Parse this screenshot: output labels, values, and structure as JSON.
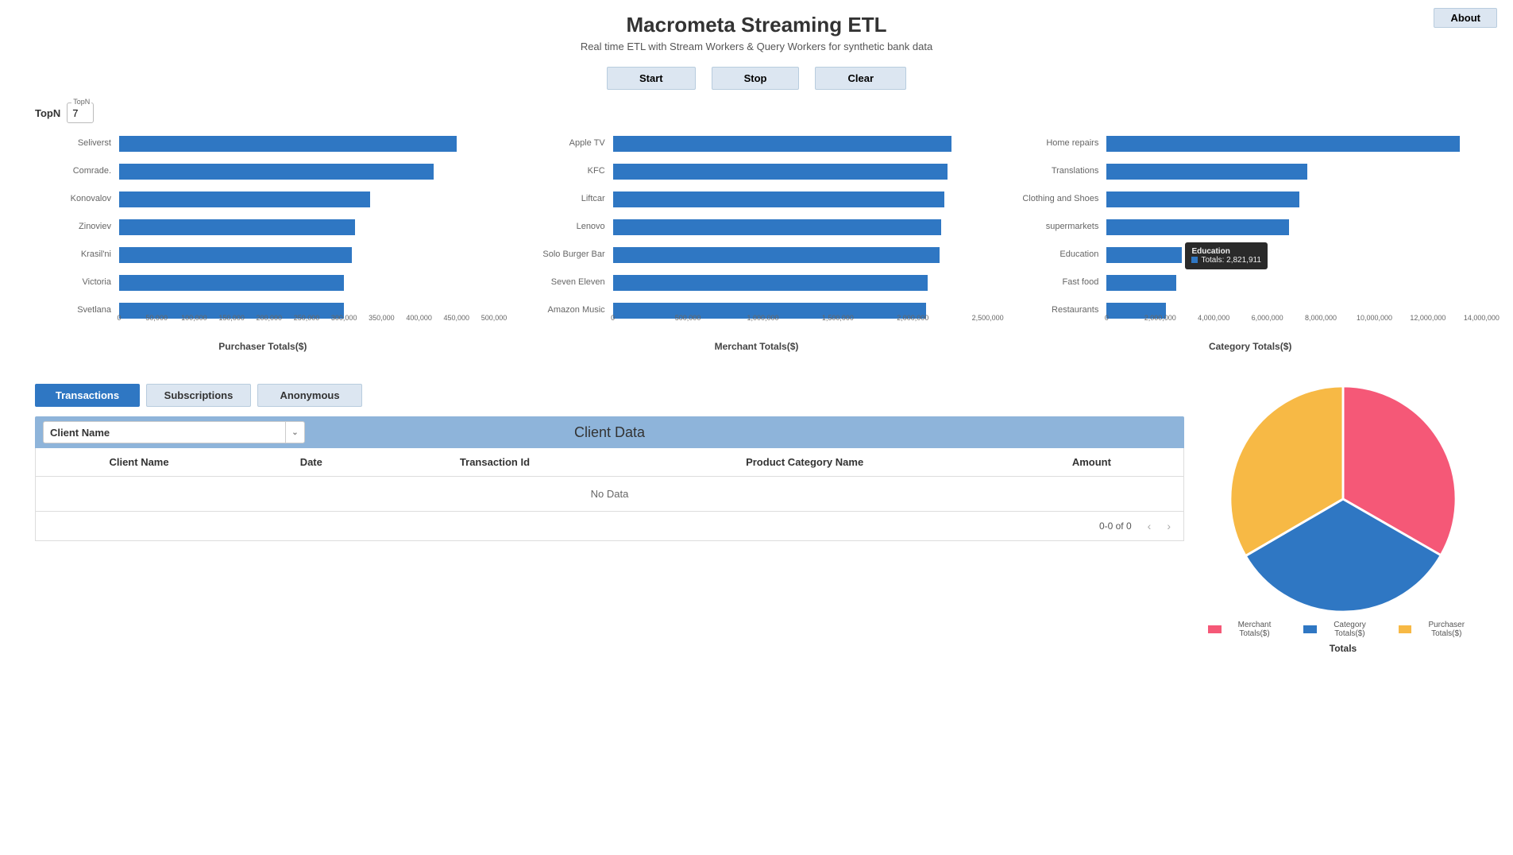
{
  "header": {
    "title": "Macrometa Streaming ETL",
    "subtitle": "Real time ETL with Stream Workers & Query Workers for synthetic bank data",
    "about_label": "About"
  },
  "controls": {
    "start": "Start",
    "stop": "Stop",
    "clear": "Clear"
  },
  "topn": {
    "label": "TopN",
    "mini_label": "TopN",
    "value": "7"
  },
  "bar_charts": {
    "bar_color": "#2f77c3",
    "label_color": "#666666",
    "label_fontsize": 11,
    "tick_fontsize": 9,
    "title_fontsize": 12,
    "purchaser": {
      "title": "Purchaser Totals($)",
      "x_max": 500000,
      "x_ticks": [
        0,
        50000,
        100000,
        150000,
        200000,
        250000,
        300000,
        350000,
        400000,
        450000,
        500000
      ],
      "x_tick_labels": [
        "0",
        "50,000",
        "100,000",
        "150,000",
        "200,000",
        "250,000",
        "300,000",
        "350,000",
        "400,000",
        "450,000",
        "500,000"
      ],
      "bars": [
        {
          "label": "Seliverst",
          "value": 450000
        },
        {
          "label": "Comrade.",
          "value": 420000
        },
        {
          "label": "Konovalov",
          "value": 335000
        },
        {
          "label": "Zinoviev",
          "value": 315000
        },
        {
          "label": "Krasil'ni",
          "value": 310000
        },
        {
          "label": "Victoria",
          "value": 300000
        },
        {
          "label": "Svetlana",
          "value": 300000
        }
      ]
    },
    "merchant": {
      "title": "Merchant Totals($)",
      "x_max": 2500000,
      "x_ticks": [
        0,
        500000,
        1000000,
        1500000,
        2000000,
        2500000
      ],
      "x_tick_labels": [
        "0",
        "500,000",
        "1,000,000",
        "1,500,000",
        "2,000,000",
        "2,500,000"
      ],
      "bars": [
        {
          "label": "Apple TV",
          "value": 2260000
        },
        {
          "label": "KFC",
          "value": 2230000
        },
        {
          "label": "Liftcar",
          "value": 2210000
        },
        {
          "label": "Lenovo",
          "value": 2190000
        },
        {
          "label": "Solo Burger Bar",
          "value": 2180000
        },
        {
          "label": "Seven Eleven",
          "value": 2100000
        },
        {
          "label": "Amazon Music",
          "value": 2090000
        }
      ]
    },
    "category": {
      "title": "Category Totals($)",
      "x_max": 14000000,
      "x_ticks": [
        0,
        2000000,
        4000000,
        6000000,
        8000000,
        10000000,
        12000000,
        14000000
      ],
      "x_tick_labels": [
        "0",
        "2,000,000",
        "4,000,000",
        "6,000,000",
        "8,000,000",
        "10,000,000",
        "12,000,000",
        "14,000,000"
      ],
      "bars": [
        {
          "label": "Home repairs",
          "value": 13200000
        },
        {
          "label": "Translations",
          "value": 7500000
        },
        {
          "label": "Clothing and Shoes",
          "value": 7200000
        },
        {
          "label": "supermarkets",
          "value": 6800000
        },
        {
          "label": "Education",
          "value": 2821911
        },
        {
          "label": "Fast food",
          "value": 2600000
        },
        {
          "label": "Restaurants",
          "value": 2200000
        }
      ],
      "tooltip": {
        "on_index": 4,
        "title": "Education",
        "value_label": "Totals: 2,821,911"
      }
    }
  },
  "tabs": {
    "transactions": "Transactions",
    "subscriptions": "Subscriptions",
    "anonymous": "Anonymous",
    "active": "transactions"
  },
  "client_panel": {
    "select_placeholder": "Client Name",
    "title": "Client Data",
    "columns": [
      {
        "label": "Client Name",
        "width": "18%"
      },
      {
        "label": "Date",
        "width": "12%"
      },
      {
        "label": "Transaction Id",
        "width": "20%"
      },
      {
        "label": "Product Category Name",
        "width": "34%"
      },
      {
        "label": "Amount",
        "width": "16%"
      }
    ],
    "empty_text": "No Data",
    "pager_text": "0-0 of 0"
  },
  "pie": {
    "title": "Totals",
    "slices": [
      {
        "label": "Merchant Totals($)",
        "color": "#f55877",
        "fraction": 0.333
      },
      {
        "label": "Category Totals($)",
        "color": "#2f77c3",
        "fraction": 0.333
      },
      {
        "label": "Purchaser Totals($)",
        "color": "#f7b945",
        "fraction": 0.334
      }
    ],
    "gap_color": "#ffffff",
    "start_deg": -90
  }
}
